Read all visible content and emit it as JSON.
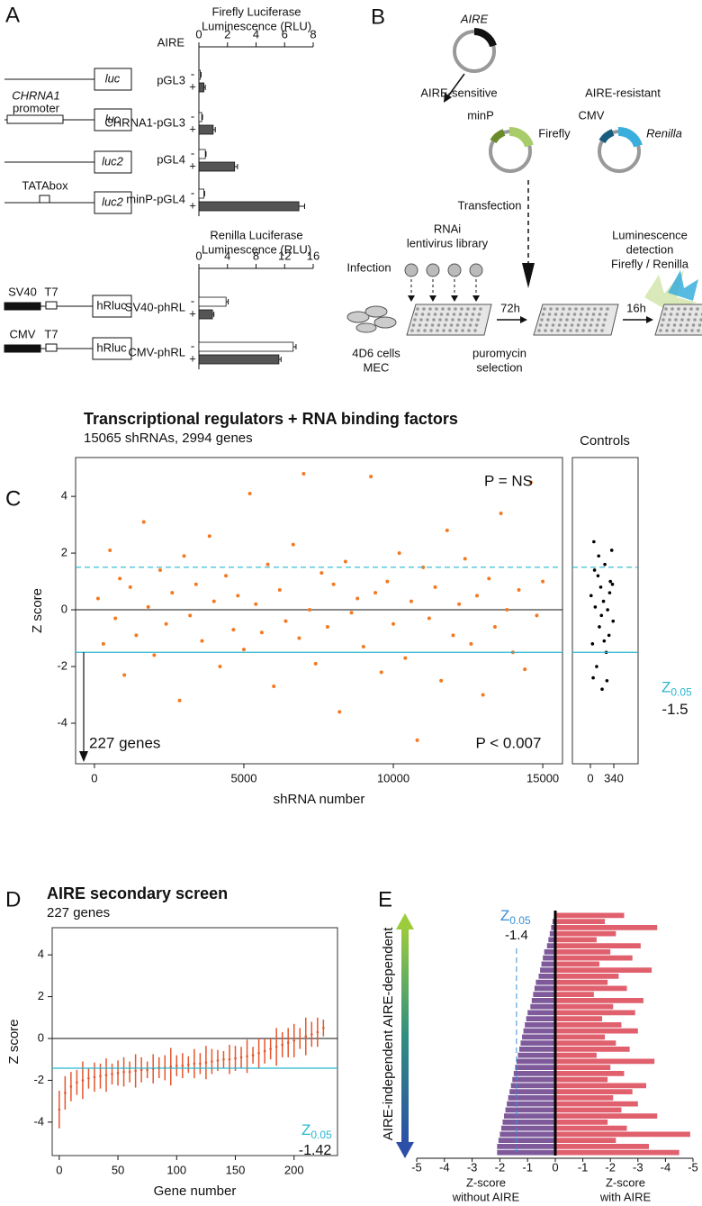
{
  "panel_labels": [
    "A",
    "B",
    "C",
    "D",
    "E"
  ],
  "constructs": {
    "luc": "luc",
    "luc2": "luc2",
    "promoter_name": "CHRNA1",
    "promoter": "promoter",
    "tata": "TATAbox",
    "sv40": "SV40",
    "t7": "T7",
    "hrluc": "hRluc",
    "cmv": "CMV"
  },
  "diagram_b": {
    "aire": "AIRE",
    "sensitive": "AIRE-sensitive",
    "resistant": "AIRE-resistant",
    "minp": "minP",
    "firefly": "Firefly",
    "cmv": "CMV",
    "renilla": "Renilla",
    "transfection": "Transfection",
    "rnai": "RNAi",
    "library": "lentivirus library",
    "infection": "Infection",
    "t72": "72h",
    "t16": "16h",
    "cells": "4D6 cells",
    "mec": "MEC",
    "puromycin": "puromycin",
    "selection": "selection",
    "detect_1": "Luminescence",
    "detect_2": "detection",
    "detect_3": "Firefly / Renilla"
  },
  "chart_data": [
    {
      "type": "hbar",
      "title_lines": [
        "Firefly Luciferase",
        "Luminescence (RLU)"
      ],
      "group_label": "AIRE",
      "categories": [
        "pGL3",
        "CHRNA1-pGL3",
        "pGL4",
        "minP-pGL4"
      ],
      "series": [
        {
          "name": "-",
          "color": "#ffffff",
          "values": [
            0.1,
            0.2,
            0.45,
            0.35
          ],
          "errors": [
            0.05,
            0.05,
            0.05,
            0.05
          ]
        },
        {
          "name": "+",
          "color": "#555555",
          "values": [
            0.35,
            1.0,
            2.5,
            7.0
          ],
          "errors": [
            0.1,
            0.15,
            0.2,
            0.4
          ]
        }
      ],
      "xlim": [
        0,
        8
      ],
      "xticks": [
        0,
        2,
        4,
        6,
        8
      ]
    },
    {
      "type": "hbar",
      "title_lines": [
        "Renilla Luciferase",
        "Luminescence (RLU)"
      ],
      "categories": [
        "SV40-phRL",
        "CMV-phRL"
      ],
      "series": [
        {
          "name": "-",
          "color": "#ffffff",
          "values": [
            3.8,
            13.2
          ],
          "errors": [
            0.3,
            0.4
          ]
        },
        {
          "name": "+",
          "color": "#555555",
          "values": [
            1.9,
            11.2
          ],
          "errors": [
            0.2,
            0.3
          ]
        }
      ],
      "xlim": [
        0,
        16
      ],
      "xticks": [
        0,
        4,
        8,
        12,
        16
      ]
    },
    {
      "type": "scatter",
      "title": "Transcriptional regulators + RNA binding factors",
      "subtitle": "15065 shRNAs, 2994 genes",
      "x_label": "shRNA number",
      "y_label": "Z score",
      "series": [
        {
          "color": "#f47920",
          "x": [
            120,
            300,
            520,
            700,
            850,
            1000,
            1200,
            1400,
            1650,
            1800,
            2000,
            2200,
            2400,
            2600,
            2850,
            3000,
            3200,
            3400,
            3600,
            3850,
            4000,
            4200,
            4400,
            4650,
            4800,
            5000,
            5200,
            5400,
            5600,
            5800,
            6000,
            6200,
            6400,
            6650,
            6850,
            7000,
            7200,
            7400,
            7600,
            7800,
            8000,
            8200,
            8400,
            8600,
            8800,
            9000,
            9250,
            9400,
            9600,
            9800,
            10000,
            10200,
            10400,
            10600,
            10800,
            11000,
            11200,
            11400,
            11600,
            11800,
            12000,
            12200,
            12400,
            12600,
            12800,
            13000,
            13200,
            13400,
            13600,
            13800,
            14000,
            14200,
            14400,
            14600,
            14800,
            15000
          ],
          "values": [
            0.4,
            -1.2,
            2.1,
            -0.3,
            1.1,
            -2.3,
            0.8,
            -0.9,
            3.1,
            0.1,
            -1.6,
            1.4,
            -0.5,
            0.6,
            -3.2,
            1.9,
            -0.2,
            0.9,
            -1.1,
            2.6,
            0.3,
            -2.0,
            1.2,
            -0.7,
            0.5,
            -1.4,
            4.1,
            0.2,
            -0.8,
            1.6,
            -2.7,
            0.7,
            -0.4,
            2.3,
            -1.0,
            4.8,
            0.0,
            -1.9,
            1.3,
            -0.6,
            0.9,
            -3.6,
            1.7,
            -0.1,
            0.4,
            -1.3,
            4.7,
            0.6,
            -2.2,
            1.0,
            -0.5,
            2.0,
            -1.7,
            0.3,
            -4.6,
            1.5,
            -0.3,
            0.8,
            -2.5,
            2.8,
            -0.9,
            0.2,
            1.8,
            -1.2,
            0.5,
            -3.0,
            1.1,
            -0.6,
            3.4,
            0.0,
            -1.5,
            0.7,
            -2.1,
            4.5,
            -0.2,
            1.0
          ]
        }
      ],
      "xlim": [
        -630,
        15660
      ],
      "ylim": [
        -5.43,
        5.37
      ],
      "xticks": [
        0,
        5000,
        10000,
        15000
      ],
      "yticks": [
        -4,
        -2,
        0,
        2,
        4
      ],
      "hline": 0,
      "thresholds": [
        1.5,
        -1.5
      ],
      "threshold_color": "#29b6d0",
      "z_symbol": "Z",
      "z_subscript": "0.05",
      "annotations": [
        "P = NS",
        "P < 0.007",
        "227 genes"
      ]
    },
    {
      "type": "scatter",
      "title": "Controls",
      "series": [
        {
          "color": "#000000",
          "x": [
            10,
            30,
            50,
            70,
            90,
            110,
            130,
            150,
            170,
            190,
            210,
            230,
            250,
            270,
            290,
            310,
            330,
            40,
            120,
            200,
            280,
            160,
            60,
            240,
            320
          ],
          "values": [
            0.5,
            -1.2,
            2.4,
            0.1,
            -2.0,
            1.2,
            -0.6,
            0.8,
            -2.8,
            0.3,
            1.6,
            -1.5,
            0.0,
            -0.9,
            1.0,
            2.1,
            -0.4,
            -2.4,
            1.9,
            -1.1,
            0.6,
            -0.2,
            1.4,
            -2.5,
            0.9
          ]
        }
      ],
      "xlim": [
        -262,
        693
      ],
      "ylim": [
        -5.43,
        5.37
      ],
      "xticks": [
        0,
        340
      ]
    },
    {
      "type": "errorbar",
      "title": "AIRE secondary screen",
      "subtitle": "227 genes",
      "x_label": "Gene number",
      "y_label": "Z score",
      "series": [
        {
          "color": "#e4572e",
          "x": [
            0,
            5,
            10,
            15,
            20,
            25,
            30,
            35,
            40,
            45,
            50,
            55,
            60,
            65,
            70,
            75,
            80,
            85,
            90,
            95,
            100,
            105,
            110,
            115,
            120,
            125,
            130,
            135,
            140,
            145,
            150,
            155,
            160,
            165,
            170,
            175,
            180,
            185,
            190,
            195,
            200,
            205,
            210,
            215,
            220,
            225
          ],
          "values": [
            -3.4,
            -2.6,
            -2.3,
            -2.1,
            -2.0,
            -1.9,
            -1.85,
            -1.8,
            -1.75,
            -1.7,
            -1.65,
            -1.6,
            -1.6,
            -1.55,
            -1.5,
            -1.5,
            -1.45,
            -1.4,
            -1.4,
            -1.35,
            -1.3,
            -1.3,
            -1.25,
            -1.2,
            -1.2,
            -1.15,
            -1.1,
            -1.05,
            -1.0,
            -1.0,
            -0.95,
            -0.9,
            -0.85,
            -0.8,
            -0.7,
            -0.6,
            -0.5,
            -0.4,
            -0.3,
            -0.2,
            -0.1,
            0.0,
            0.1,
            0.2,
            0.3,
            0.5
          ],
          "errors": [
            0.9,
            0.8,
            0.7,
            0.6,
            0.9,
            0.5,
            0.7,
            0.6,
            0.8,
            0.5,
            0.6,
            0.7,
            0.5,
            0.8,
            0.6,
            0.4,
            0.7,
            0.5,
            0.6,
            0.9,
            0.5,
            0.6,
            0.4,
            0.7,
            0.5,
            0.8,
            0.6,
            0.5,
            0.4,
            0.7,
            0.6,
            0.5,
            0.8,
            0.4,
            0.7,
            0.6,
            0.5,
            0.9,
            0.6,
            0.7,
            0.8,
            0.5,
            0.9,
            0.6,
            0.7,
            0.4
          ]
        }
      ],
      "xlim": [
        -6,
        237
      ],
      "ylim": [
        -5.6,
        5.3
      ],
      "xticks": [
        0,
        50,
        100,
        150,
        200
      ],
      "yticks": [
        -4,
        -2,
        0,
        2,
        4
      ],
      "hline": 0,
      "thresholds": [
        -1.42
      ],
      "threshold_color": "#29b6d0",
      "z_symbol": "Z",
      "z_subscript": "0.05"
    },
    {
      "type": "mirror-bar",
      "categories": [
        null,
        null,
        null,
        null,
        null,
        null,
        null,
        null,
        null,
        null,
        null,
        null,
        null,
        null,
        null,
        null,
        null,
        null,
        null,
        null,
        null,
        null,
        null,
        null,
        null,
        null,
        null,
        null,
        null,
        null,
        null,
        null,
        null,
        null,
        null,
        null,
        null,
        null,
        null,
        null
      ],
      "series": [
        {
          "color": "#7e5a9b",
          "values": [
            -0.05,
            -0.1,
            -0.15,
            -0.2,
            -0.25,
            -0.3,
            -0.4,
            -0.45,
            -0.5,
            -0.55,
            -0.6,
            -0.7,
            -0.75,
            -0.8,
            -0.85,
            -0.9,
            -1.0,
            -1.05,
            -1.1,
            -1.15,
            -1.2,
            -1.25,
            -1.3,
            -1.35,
            -1.4,
            -1.45,
            -1.5,
            -1.55,
            -1.6,
            -1.65,
            -1.7,
            -1.75,
            -1.8,
            -1.85,
            -1.9,
            -1.95,
            -2.0,
            -2.05,
            -2.1,
            -2.1
          ]
        },
        {
          "color": "#e0606e",
          "values": [
            -2.5,
            -1.8,
            -3.7,
            -2.2,
            -1.5,
            -3.1,
            -2.0,
            -2.8,
            -1.6,
            -3.5,
            -2.3,
            -1.9,
            -2.6,
            -1.4,
            -3.2,
            -2.1,
            -2.9,
            -1.7,
            -2.4,
            -3.0,
            -1.8,
            -2.2,
            -2.7,
            -1.5,
            -3.6,
            -2.0,
            -2.5,
            -1.9,
            -3.3,
            -2.8,
            -2.1,
            -3.0,
            -2.4,
            -3.7,
            -1.9,
            -2.6,
            -4.9,
            -2.2,
            -3.4,
            -4.5
          ]
        }
      ],
      "axis_labels": [
        [
          "Z-score",
          "without AIRE"
        ],
        [
          "Z-score",
          "with AIRE"
        ]
      ],
      "xlim": [
        -5,
        0
      ],
      "x2lim": [
        0,
        -5
      ],
      "xticks": [
        -5,
        -4,
        -3,
        -2,
        -1,
        0
      ],
      "x2ticks": [
        -1,
        -2,
        -3,
        -4,
        -5
      ],
      "thresholds": [
        -1.4
      ],
      "threshold_color": "#3a8fd8",
      "z_symbol": "Z",
      "z_subscript": "0.05",
      "arrow_labels": [
        "AIRE-dependent",
        "AIRE-independent"
      ],
      "arrow_colors": [
        "#6cbf3a",
        "#2c4fa8"
      ]
    }
  ]
}
